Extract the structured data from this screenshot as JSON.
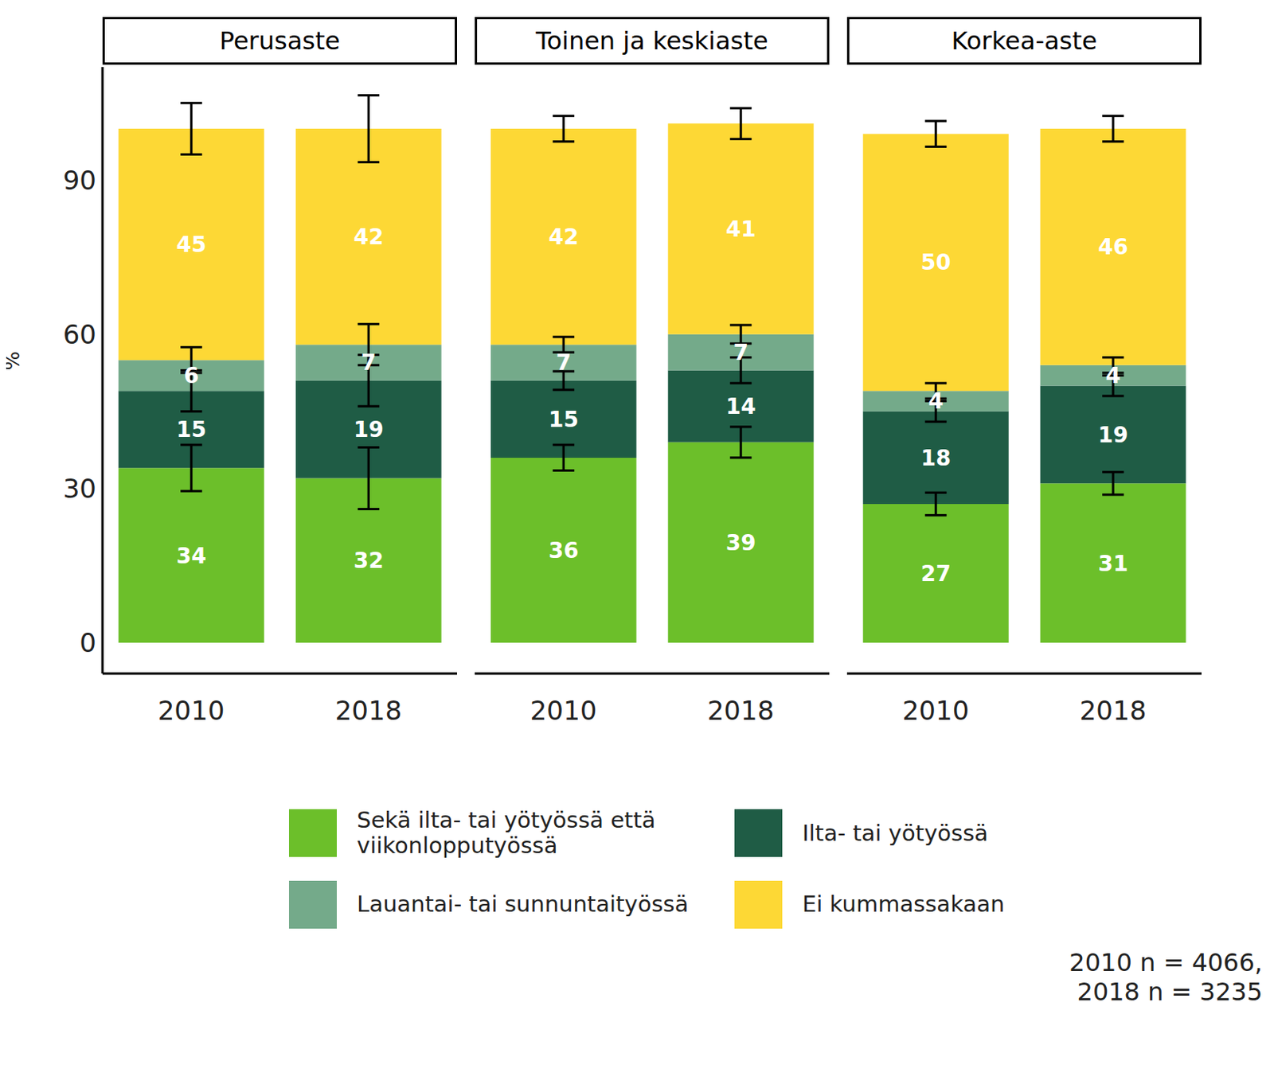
{
  "chart_data": [
    {
      "type": "bar",
      "stacked": true,
      "data_labels": true,
      "title": "Perusaste",
      "y_label": "%",
      "categories": [
        "2010",
        "2018"
      ],
      "ylim": [
        -6,
        112
      ],
      "yticks": [
        0,
        30,
        60,
        90
      ],
      "series": [
        {
          "name": "Sekä ilta- tai yötyössä että viikonlopputyössä",
          "color": "#6cbf2a",
          "values": [
            34,
            32
          ],
          "errors": [
            4.5,
            6
          ]
        },
        {
          "name": "Ilta- tai yötyössä",
          "color": "#1f5c45",
          "values": [
            15,
            19
          ],
          "errors": [
            4,
            5
          ]
        },
        {
          "name": "Lauantai- tai sunnuntaityössä",
          "color": "#74aa8a",
          "values": [
            6,
            7
          ],
          "errors": [
            2.5,
            4
          ]
        },
        {
          "name": "Ei kummassakaan",
          "color": "#fdd835",
          "values": [
            45,
            42
          ],
          "errors": [
            5,
            6.5
          ]
        }
      ]
    },
    {
      "type": "bar",
      "stacked": true,
      "data_labels": true,
      "tick_labels": "x",
      "title": "Toinen ja keskiaste",
      "categories": [
        "2010",
        "2018"
      ],
      "ylim": [
        -6,
        112
      ],
      "series": [
        {
          "name": "Sekä ilta- tai yötyössä että viikonlopputyössä",
          "color": "#6cbf2a",
          "values": [
            36,
            39
          ],
          "errors": [
            2.5,
            3
          ]
        },
        {
          "name": "Ilta- tai yötyössä",
          "color": "#1f5c45",
          "values": [
            15,
            14
          ],
          "errors": [
            1.8,
            2.5
          ]
        },
        {
          "name": "Lauantai- tai sunnuntaityössä",
          "color": "#74aa8a",
          "values": [
            7,
            7
          ],
          "errors": [
            1.5,
            1.8
          ]
        },
        {
          "name": "Ei kummassakaan",
          "color": "#fdd835",
          "values": [
            42,
            41
          ],
          "errors": [
            2.5,
            3
          ]
        }
      ]
    },
    {
      "type": "bar",
      "stacked": true,
      "data_labels": true,
      "tick_labels": "x",
      "title": "Korkea-aste",
      "categories": [
        "2010",
        "2018"
      ],
      "ylim": [
        -6,
        112
      ],
      "series": [
        {
          "name": "Sekä ilta- tai yötyössä että viikonlopputyössä",
          "color": "#6cbf2a",
          "values": [
            27,
            31
          ],
          "errors": [
            2.2,
            2.2
          ]
        },
        {
          "name": "Ilta- tai yötyössä",
          "color": "#1f5c45",
          "values": [
            18,
            19
          ],
          "errors": [
            2,
            2
          ]
        },
        {
          "name": "Lauantai- tai sunnuntaityössä",
          "color": "#74aa8a",
          "values": [
            4,
            4
          ],
          "errors": [
            1.5,
            1.5
          ]
        },
        {
          "name": "Ei kummassakaan",
          "color": "#fdd835",
          "values": [
            50,
            46
          ],
          "errors": [
            2.5,
            2.5
          ]
        }
      ]
    }
  ],
  "note": [
    "2010 n = 4066,",
    "2018 n = 3235"
  ]
}
